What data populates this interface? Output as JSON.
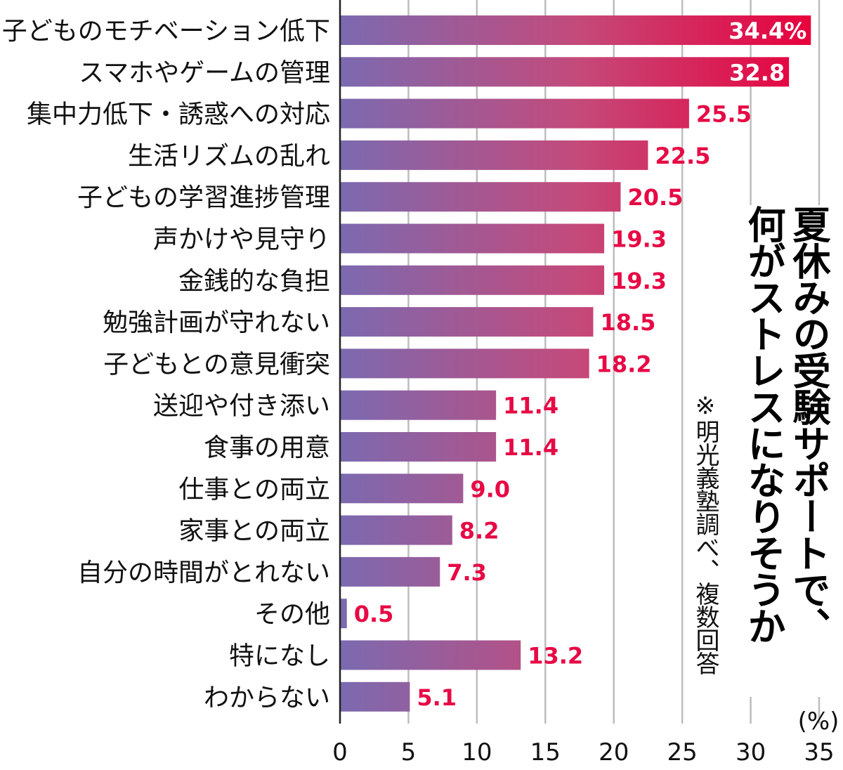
{
  "chart_data": {
    "type": "bar",
    "orientation": "horizontal",
    "title_lines": [
      "夏休みの受験サポートで、",
      "何がストレスになりそうか"
    ],
    "source": "※明光義塾調べ、複数回答",
    "unit_label": "(%)",
    "categories": [
      "子どものモチベーション低下",
      "スマホやゲームの管理",
      "集中力低下・誘惑への対応",
      "生活リズムの乱れ",
      "子どもの学習進捗管理",
      "声かけや見守り",
      "金銭的な負担",
      "勉強計画が守れない",
      "子どもとの意見衝突",
      "送迎や付き添い",
      "食事の用意",
      "仕事との両立",
      "家事との両立",
      "自分の時間がとれない",
      "その他",
      "特になし",
      "わからない"
    ],
    "values": [
      34.4,
      32.8,
      25.5,
      22.5,
      20.5,
      19.3,
      19.3,
      18.5,
      18.2,
      11.4,
      11.4,
      9.0,
      8.2,
      7.3,
      0.5,
      13.2,
      5.1
    ],
    "value_labels": [
      "34.4%",
      "32.8",
      "25.5",
      "22.5",
      "20.5",
      "19.3",
      "19.3",
      "18.5",
      "18.2",
      "11.4",
      "11.4",
      "9.0",
      "8.2",
      "7.3",
      "0.5",
      "13.2",
      "5.1"
    ],
    "xlim": [
      0,
      35
    ],
    "xticks": [
      "0",
      "5",
      "10",
      "15",
      "20",
      "25",
      "30",
      "35"
    ],
    "grid": true,
    "colors": {
      "bar_start": "#7b6ab0",
      "bar_end": "#e8003c",
      "value_label": "#e60a45",
      "grid": "#bdbdbd"
    }
  }
}
